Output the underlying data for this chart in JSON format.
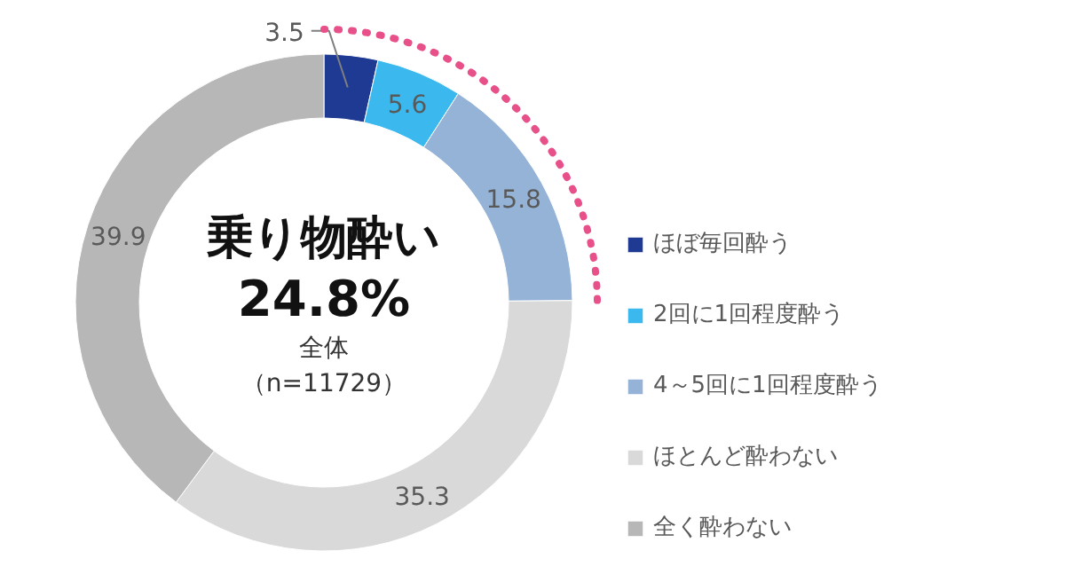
{
  "chart_data": {
    "type": "donut",
    "categories": [
      "ほぼ毎回酔う",
      "2回に1回程度酔う",
      "4～5回に1回程度酔う",
      "ほとんど酔わない",
      "全く酔わない"
    ],
    "values": [
      3.5,
      5.6,
      15.8,
      35.3,
      39.9
    ],
    "colors": [
      "#1f3a93",
      "#3bb8ee",
      "#95b3d7",
      "#d9d9d9",
      "#b7b7b7"
    ],
    "data_labels": true,
    "legend": "right",
    "annotations": [
      "乗り物酔い",
      "24.8%",
      "全体",
      "（n=11729）"
    ]
  }
}
